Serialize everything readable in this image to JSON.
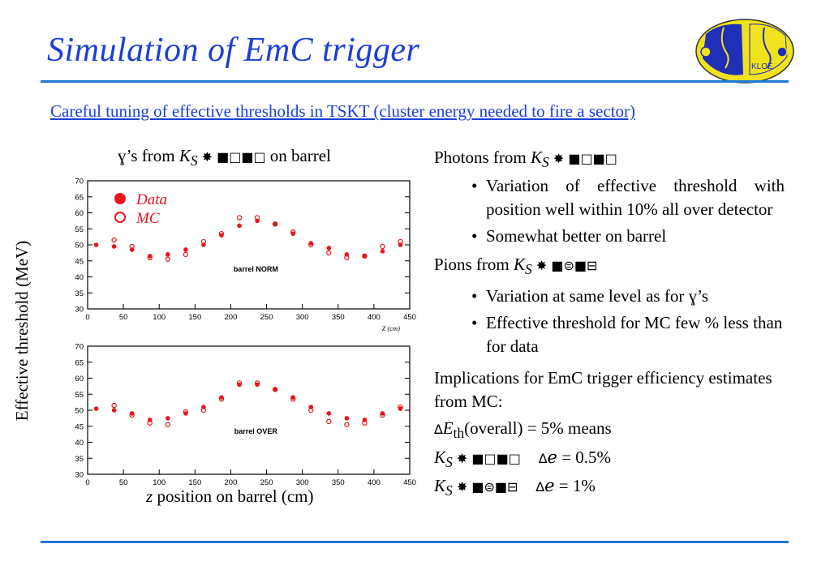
{
  "title": "Simulation of EmC trigger",
  "subtitle": "Careful tuning of effective thresholds in TSKT (cluster energy needed to fire a sector)",
  "left_header": {
    "gamma_glyph": "ɣ",
    "text1": "’s from ",
    "k": "K",
    "s": "S",
    "decay": " ✸ ■□■□ ",
    "text2": "on barrel"
  },
  "y_axis_label": "Effective threshold (MeV)",
  "x_axis_label": {
    "z": "z",
    "rest": " position on barrel (cm)"
  },
  "legend": {
    "data": "Data",
    "mc": "MC"
  },
  "plot_labels": [
    "barrel NORM",
    "barrel OVER"
  ],
  "x_unit": "Z (cm)",
  "colors": {
    "title": "#1b3fd6",
    "rule": "#2277d6",
    "marker": "#e8141e",
    "logo_yellow": "#f0e21c",
    "logo_blue": "#1f2fb8"
  },
  "logo_text": "KLOE",
  "chart_data": [
    {
      "type": "scatter",
      "title": "barrel NORM",
      "xlabel": "Z (cm)",
      "ylabel": "Effective threshold (MeV)",
      "xlim": [
        0,
        450
      ],
      "ylim": [
        30,
        70
      ],
      "xticks": [
        0,
        50,
        100,
        150,
        200,
        250,
        300,
        350,
        400,
        450
      ],
      "yticks": [
        30,
        35,
        40,
        45,
        50,
        55,
        60,
        65,
        70
      ],
      "series": [
        {
          "name": "Data",
          "marker": "filled",
          "x": [
            12,
            37,
            62,
            87,
            112,
            137,
            162,
            187,
            212,
            237,
            262,
            287,
            312,
            337,
            362,
            387,
            412,
            437
          ],
          "y": [
            50.0,
            49.5,
            48.5,
            46.5,
            47.0,
            48.5,
            50.0,
            53.0,
            56.0,
            57.5,
            56.5,
            53.5,
            50.5,
            49.0,
            47.0,
            46.5,
            48.0,
            50.0
          ]
        },
        {
          "name": "MC",
          "marker": "open",
          "x": [
            12,
            37,
            62,
            87,
            112,
            137,
            162,
            187,
            212,
            237,
            262,
            287,
            312,
            337,
            362,
            387,
            412,
            437
          ],
          "y": [
            null,
            51.5,
            49.5,
            46.0,
            45.5,
            47.0,
            51.0,
            53.5,
            58.5,
            58.5,
            56.5,
            54.0,
            50.0,
            47.5,
            46.0,
            46.5,
            49.5,
            51.0
          ]
        }
      ]
    },
    {
      "type": "scatter",
      "title": "barrel OVER",
      "xlabel": "Z (cm)",
      "ylabel": "Effective threshold (MeV)",
      "xlim": [
        0,
        450
      ],
      "ylim": [
        30,
        70
      ],
      "xticks": [
        0,
        50,
        100,
        150,
        200,
        250,
        300,
        350,
        400,
        450
      ],
      "yticks": [
        30,
        35,
        40,
        45,
        50,
        55,
        60,
        65,
        70
      ],
      "series": [
        {
          "name": "Data",
          "marker": "filled",
          "x": [
            12,
            37,
            62,
            87,
            112,
            137,
            162,
            187,
            212,
            237,
            262,
            287,
            312,
            337,
            362,
            387,
            412,
            437
          ],
          "y": [
            50.5,
            50.0,
            49.0,
            47.0,
            47.5,
            49.0,
            51.0,
            54.0,
            58.0,
            58.0,
            56.5,
            54.0,
            51.0,
            49.0,
            47.5,
            47.0,
            49.0,
            50.5
          ]
        },
        {
          "name": "MC",
          "marker": "open",
          "x": [
            12,
            37,
            62,
            87,
            112,
            137,
            162,
            187,
            212,
            237,
            262,
            287,
            312,
            337,
            362,
            387,
            412,
            437
          ],
          "y": [
            null,
            51.5,
            48.5,
            46.0,
            45.5,
            49.5,
            50.0,
            53.5,
            58.5,
            58.5,
            56.5,
            53.5,
            50.0,
            46.5,
            45.5,
            46.0,
            48.5,
            51.0
          ]
        }
      ]
    }
  ],
  "right": {
    "photons_head": "Photons from ",
    "k": "K",
    "s": "S",
    "decay_pi0": " ✸ ■□■□",
    "decay_pipm": " ✸ ■⊜■⊟",
    "bullet": "•",
    "photons_b1": "Variation of effective threshold with position well within 10% all over detector",
    "photons_b2": "Somewhat better on barrel",
    "pions_head": "Pions from ",
    "pions_b1a": "Variation at same level as for ",
    "gamma_glyph": "ɣ",
    "pions_b1b": "’s",
    "pions_b2": "Effective threshold for MC few % less than for data",
    "impl": "Implications for EmC trigger efficiency estimates from MC:",
    "delta": "∆",
    "e_sym": "E",
    "th": "th",
    "overall": "(overall) = 5% means",
    "eps": "ℯ",
    "eq1": " = 0.5%",
    "eq2": " = 1%"
  }
}
